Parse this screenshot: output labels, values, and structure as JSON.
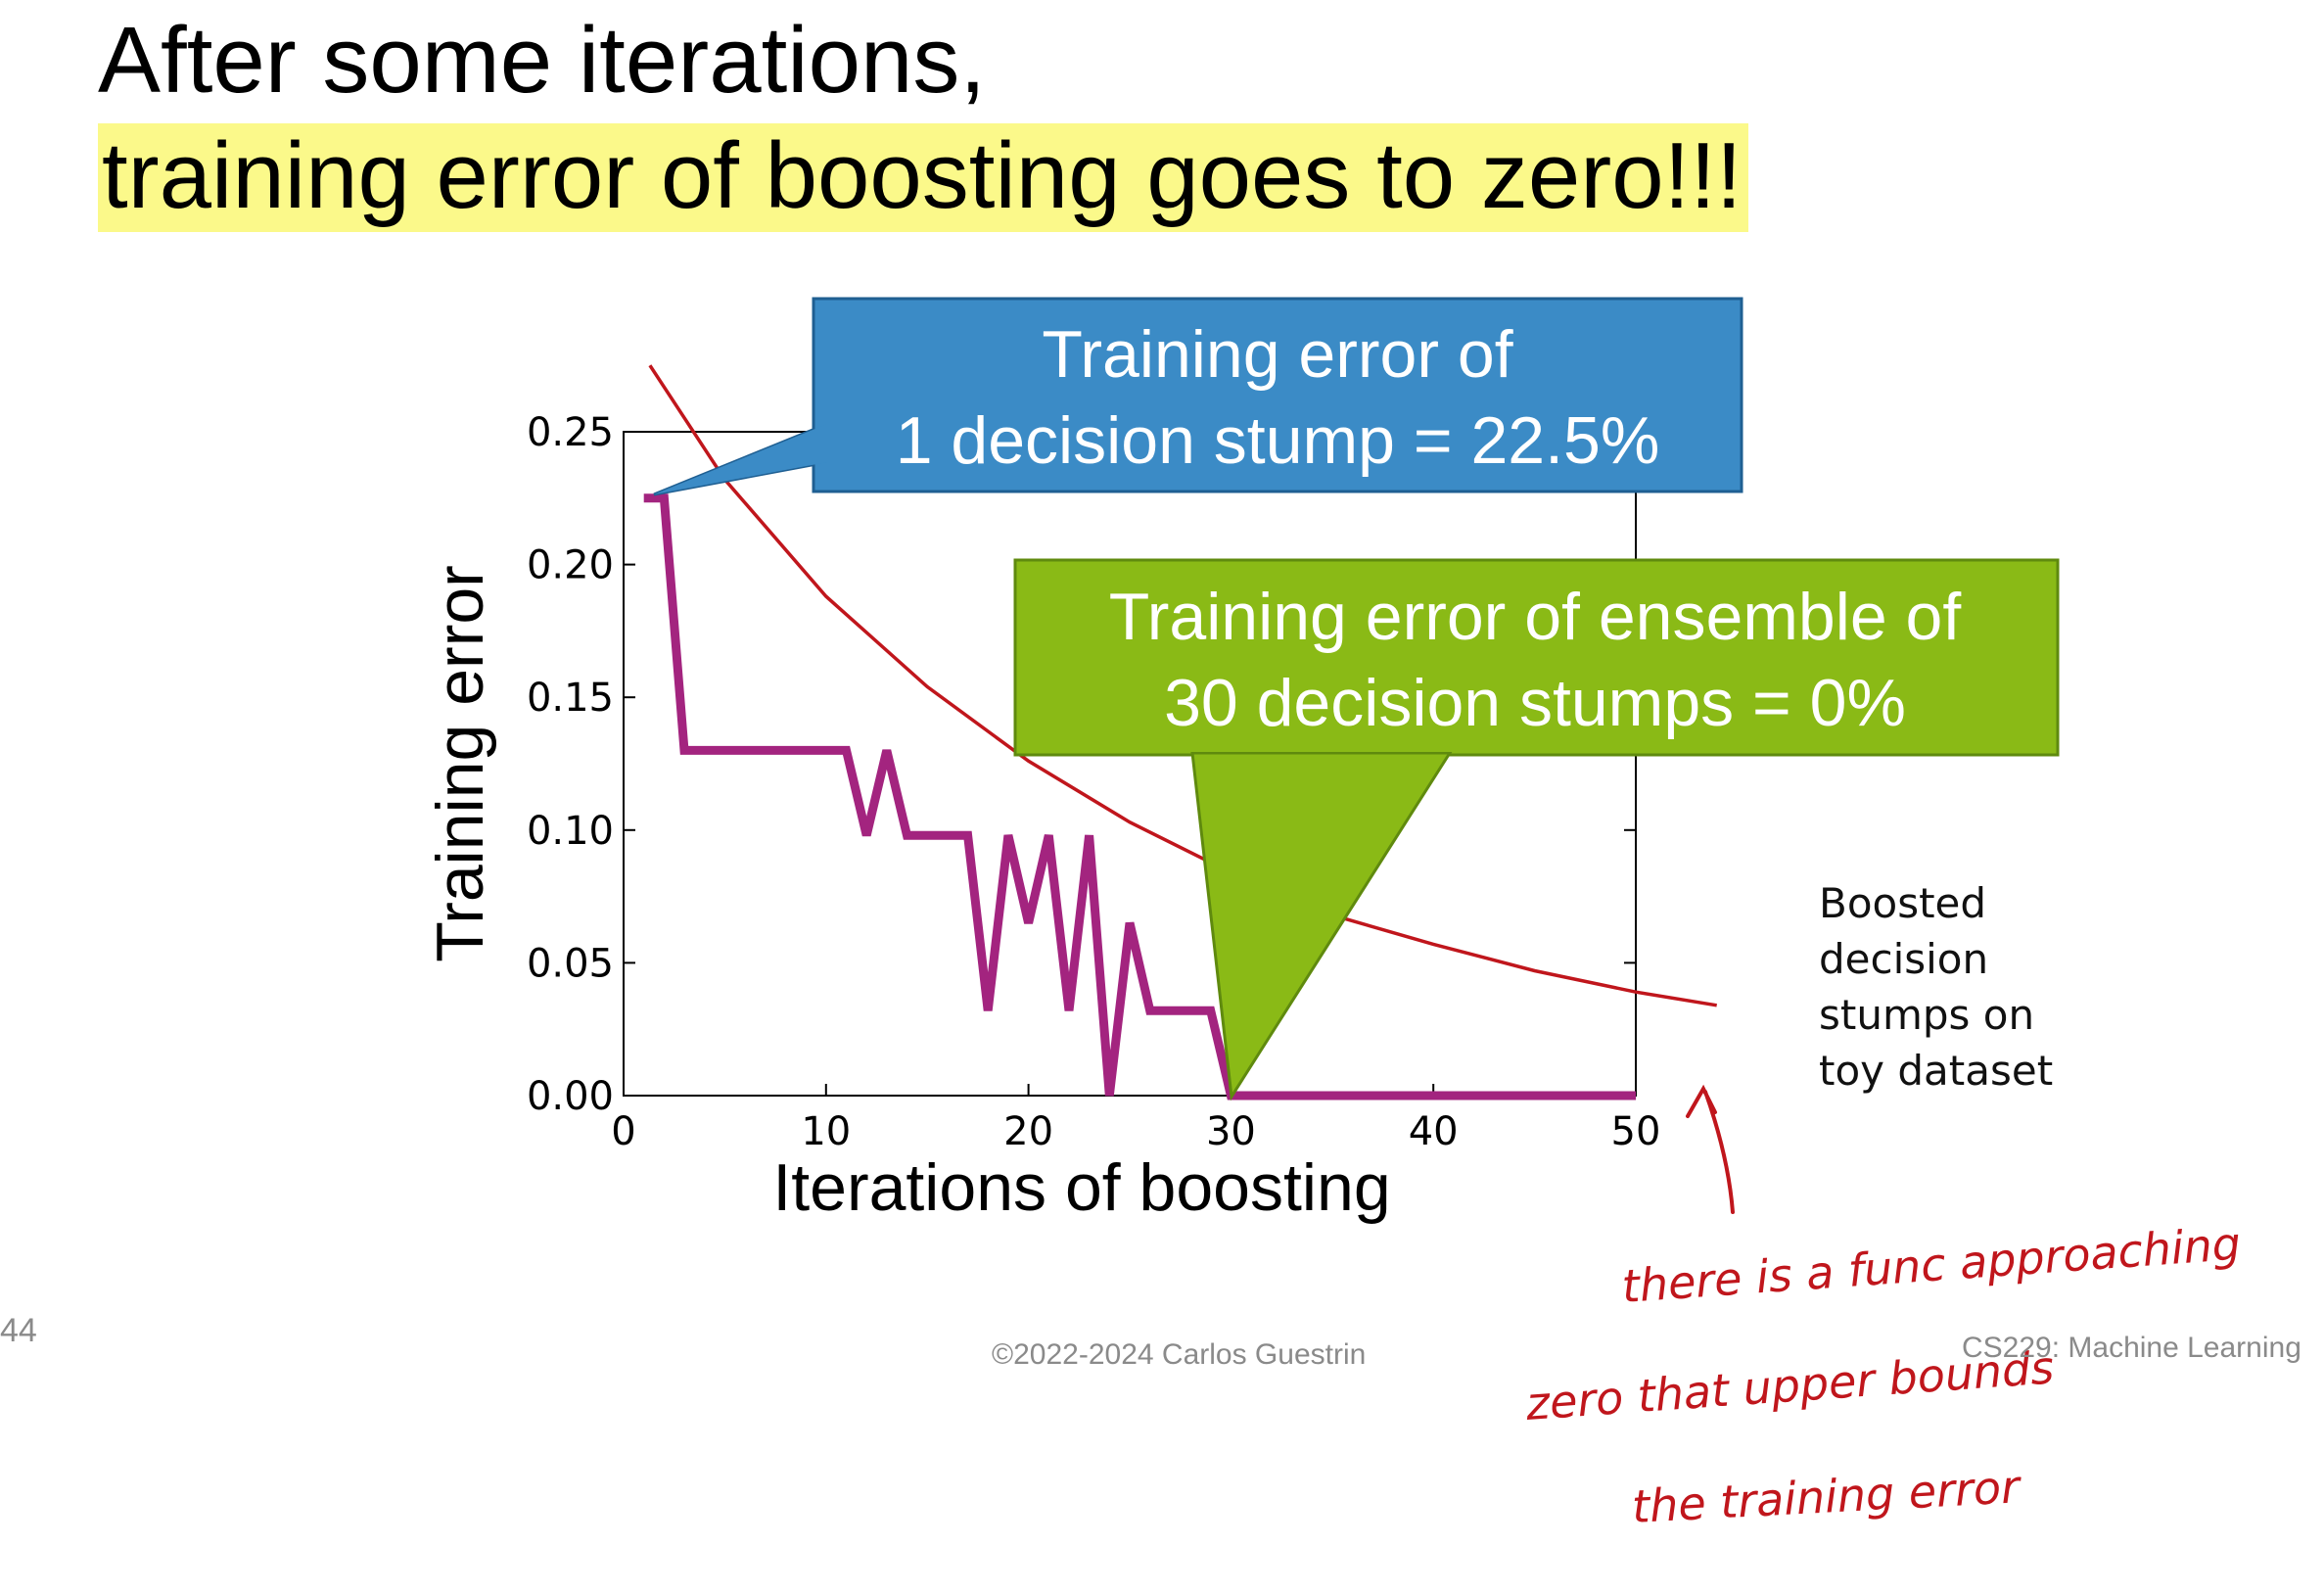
{
  "slide": {
    "title_line_1": "After some iterations,",
    "title_line_2": "training error of boosting goes to zero!!!",
    "highlight_color": "#fbf98a",
    "slide_number": "44",
    "copyright": "©2022-2024 Carlos Guestrin",
    "course": "CS229: Machine Learning"
  },
  "callouts": {
    "single_stump": {
      "line1": "Training error of",
      "line2": "1 decision stump = 22.5%",
      "color": "#3b8bc6"
    },
    "ensemble": {
      "line1": "Training error of ensemble of",
      "line2": "30 decision stumps = 0%",
      "color": "#8aba16"
    }
  },
  "side_note": [
    "Boosted",
    "decision",
    "stumps on",
    "toy dataset"
  ],
  "annotation": {
    "ink_color": "#c0161c",
    "lines": [
      "there is a func approaching",
      "zero that upper bounds",
      "the training error"
    ]
  },
  "chart_data": {
    "type": "line",
    "xlabel": "Iterations of boosting",
    "ylabel": "Training error",
    "xlim": [
      0,
      50
    ],
    "ylim": [
      0,
      0.25
    ],
    "xticks": [
      "0",
      "10",
      "20",
      "30",
      "40",
      "50"
    ],
    "yticks": [
      "0.00",
      "0.05",
      "0.10",
      "0.15",
      "0.20",
      "0.25"
    ],
    "grid": false,
    "series": [
      {
        "color": "#a3247f",
        "x": [
          1,
          2,
          3,
          4,
          5,
          6,
          7,
          8,
          9,
          10,
          11,
          12,
          13,
          14,
          15,
          16,
          17,
          18,
          19,
          20,
          21,
          22,
          23,
          24,
          25,
          26,
          27,
          28,
          29,
          30,
          31,
          32,
          33,
          34,
          35,
          36,
          37,
          38,
          39,
          40,
          41,
          42,
          43,
          44,
          45,
          46,
          47,
          48,
          49,
          50
        ],
        "y": [
          0.225,
          0.225,
          0.13,
          0.13,
          0.13,
          0.13,
          0.13,
          0.13,
          0.13,
          0.13,
          0.13,
          0.098,
          0.13,
          0.098,
          0.098,
          0.098,
          0.098,
          0.032,
          0.098,
          0.065,
          0.098,
          0.032,
          0.098,
          0.0,
          0.065,
          0.032,
          0.032,
          0.032,
          0.032,
          0.0,
          0.0,
          0.0,
          0.0,
          0.0,
          0.0,
          0.0,
          0.0,
          0.0,
          0.0,
          0.0,
          0.0,
          0.0,
          0.0,
          0.0,
          0.0,
          0.0,
          0.0,
          0.0,
          0.0,
          0.0
        ]
      },
      {
        "color": "#c0161c",
        "x": [
          1.3,
          5,
          10,
          15,
          20,
          25,
          30,
          35,
          40,
          45,
          50,
          54
        ],
        "y": [
          0.275,
          0.232,
          0.188,
          0.154,
          0.126,
          0.103,
          0.084,
          0.068,
          0.057,
          0.047,
          0.039,
          0.034
        ]
      }
    ]
  }
}
